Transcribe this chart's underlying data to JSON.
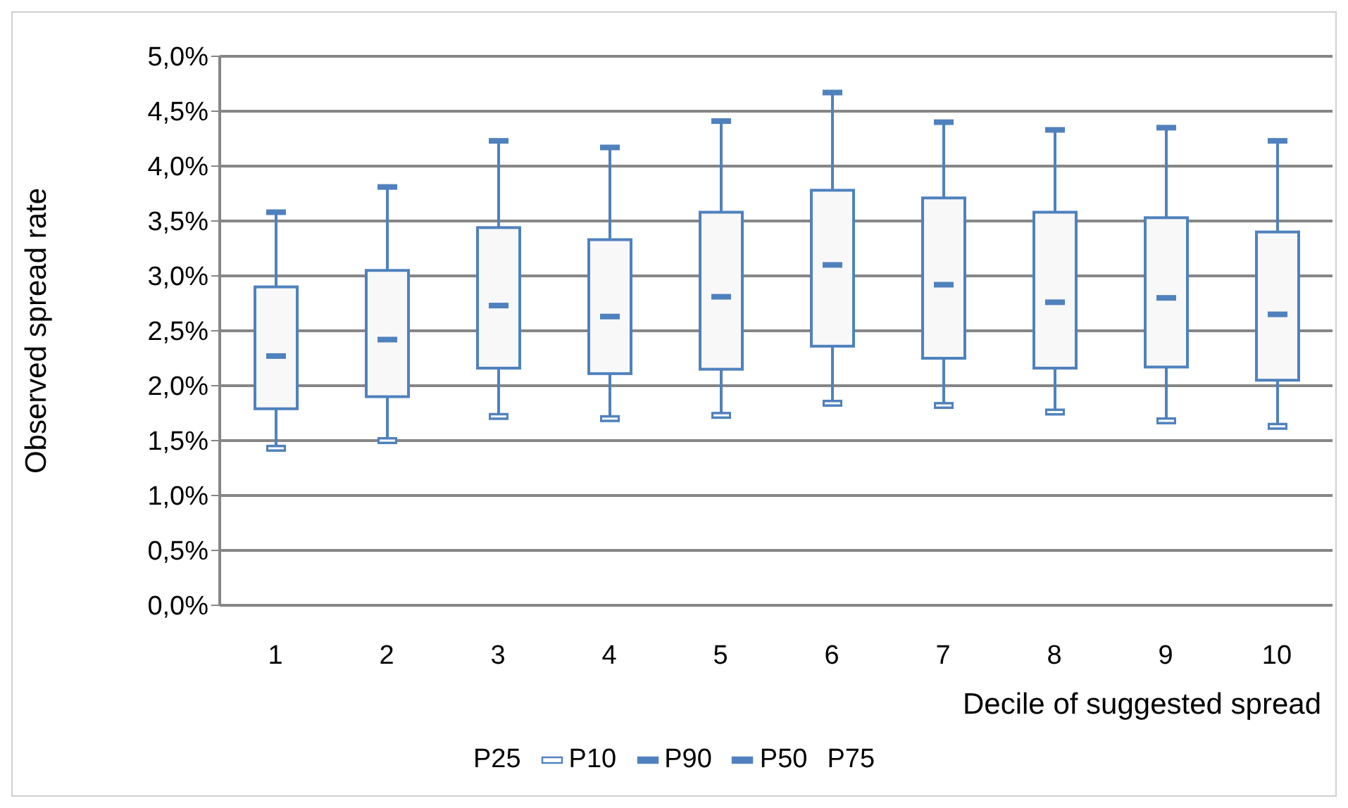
{
  "chart_data": {
    "type": "box",
    "xlabel": "Decile of suggested spread",
    "ylabel": "Observed spread rate",
    "categories": [
      "1",
      "2",
      "3",
      "4",
      "5",
      "6",
      "7",
      "8",
      "9",
      "10"
    ],
    "series": [
      {
        "color": "#4f81bd",
        "boxes": [
          {
            "low": 1.43,
            "q1": 1.79,
            "median": 2.27,
            "q3": 2.9,
            "high": 3.58
          },
          {
            "low": 1.5,
            "q1": 1.9,
            "median": 2.42,
            "q3": 3.05,
            "high": 3.81
          },
          {
            "low": 1.72,
            "q1": 2.16,
            "median": 2.73,
            "q3": 3.44,
            "high": 4.23
          },
          {
            "low": 1.7,
            "q1": 2.11,
            "median": 2.63,
            "q3": 3.33,
            "high": 4.17
          },
          {
            "low": 1.73,
            "q1": 2.15,
            "median": 2.81,
            "q3": 3.58,
            "high": 4.41
          },
          {
            "low": 1.84,
            "q1": 2.36,
            "median": 3.1,
            "q3": 3.78,
            "high": 4.67
          },
          {
            "low": 1.82,
            "q1": 2.25,
            "median": 2.92,
            "q3": 3.71,
            "high": 4.4
          },
          {
            "low": 1.76,
            "q1": 2.16,
            "median": 2.76,
            "q3": 3.58,
            "high": 4.33
          },
          {
            "low": 1.68,
            "q1": 2.17,
            "median": 2.8,
            "q3": 3.53,
            "high": 4.35
          },
          {
            "low": 1.63,
            "q1": 2.05,
            "median": 2.65,
            "q3": 3.4,
            "high": 4.23
          }
        ]
      }
    ],
    "ylim": [
      0,
      5
    ],
    "yticks": [
      {
        "value": 0,
        "label": "0,0%"
      },
      {
        "value": 0.5,
        "label": "0,5%"
      },
      {
        "value": 1,
        "label": "1,0%"
      },
      {
        "value": 1.5,
        "label": "1,5%"
      },
      {
        "value": 2,
        "label": "2,0%"
      },
      {
        "value": 2.5,
        "label": "2,5%"
      },
      {
        "value": 3,
        "label": "3,0%"
      },
      {
        "value": 3.5,
        "label": "3,5%"
      },
      {
        "value": 4,
        "label": "4,0%"
      },
      {
        "value": 4.5,
        "label": "4,5%"
      },
      {
        "value": 5,
        "label": "5,0%"
      }
    ],
    "grid": "y",
    "annotations": [
      "P25",
      "P10",
      "P90",
      "P50",
      "P75"
    ]
  }
}
